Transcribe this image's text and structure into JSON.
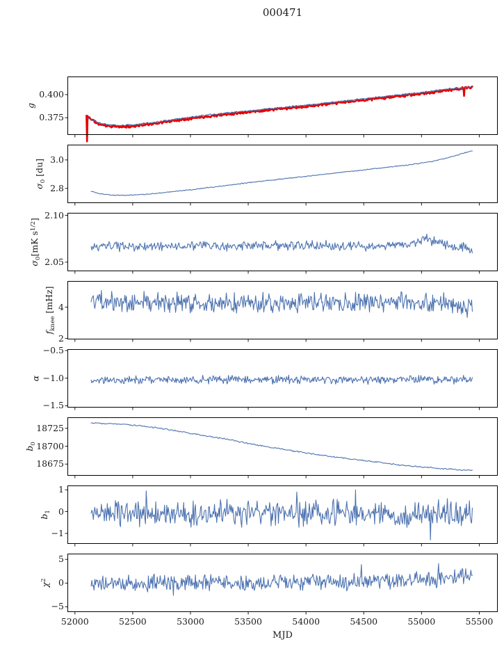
{
  "title": "000471",
  "chart_data": {
    "type": "line",
    "title": "000471",
    "xlabel": "MJD",
    "xlim": [
      51935,
      55660
    ],
    "xticks": [
      52000,
      52500,
      53000,
      53500,
      54000,
      54500,
      55000,
      55500
    ],
    "grid": false,
    "legend": "none",
    "colors": {
      "line_blue": "#4c72b0",
      "line_red": "#e50000",
      "axis": "#000000"
    },
    "panels": [
      {
        "id": "g",
        "ylabel": [
          {
            "t": "g",
            "it": true
          }
        ],
        "ylim": [
          0.3565,
          0.4195
        ],
        "yticks": [
          {
            "v": 0.4,
            "label": "0.400"
          },
          {
            "v": 0.375,
            "label": "0.375"
          }
        ],
        "series": [
          {
            "name": "g-raw-red",
            "color": "#e50000",
            "width": 2.6,
            "n": 700,
            "seed": 11,
            "noise": 0.0009,
            "trend": [
              [
                52100,
                0.3772
              ],
              [
                52200,
                0.3684
              ],
              [
                52300,
                0.3659
              ],
              [
                52400,
                0.3653
              ],
              [
                52500,
                0.366
              ],
              [
                52650,
                0.3682
              ],
              [
                52800,
                0.3709
              ],
              [
                52950,
                0.3735
              ],
              [
                53100,
                0.3759
              ],
              [
                53250,
                0.378
              ],
              [
                53400,
                0.38
              ],
              [
                53550,
                0.3819
              ],
              [
                53700,
                0.3837
              ],
              [
                53850,
                0.3855
              ],
              [
                54000,
                0.3873
              ],
              [
                54150,
                0.3893
              ],
              [
                54300,
                0.3913
              ],
              [
                54450,
                0.3935
              ],
              [
                54600,
                0.3956
              ],
              [
                54750,
                0.3977
              ],
              [
                54900,
                0.3996
              ],
              [
                55050,
                0.4016
              ],
              [
                55150,
                0.4035
              ],
              [
                55250,
                0.4052
              ],
              [
                55350,
                0.4066
              ],
              [
                55440,
                0.4082
              ]
            ],
            "spikes": [
              [
                52104,
                0.3495
              ],
              [
                55370,
                0.3985
              ]
            ]
          },
          {
            "name": "g-smooth-blue",
            "color": "#4c72b0",
            "width": 1.2,
            "n": 420,
            "seed": 3,
            "noise": 0.0005,
            "trend": [
              [
                52110,
                0.3748
              ],
              [
                52200,
                0.3697
              ],
              [
                52300,
                0.3672
              ],
              [
                52400,
                0.3666
              ],
              [
                52500,
                0.3673
              ],
              [
                52650,
                0.3695
              ],
              [
                52800,
                0.3722
              ],
              [
                52950,
                0.3748
              ],
              [
                53100,
                0.3772
              ],
              [
                53250,
                0.3793
              ],
              [
                53400,
                0.3813
              ],
              [
                53550,
                0.3832
              ],
              [
                53700,
                0.385
              ],
              [
                53850,
                0.3868
              ],
              [
                54000,
                0.3886
              ],
              [
                54150,
                0.3906
              ],
              [
                54300,
                0.3926
              ],
              [
                54450,
                0.3948
              ],
              [
                54600,
                0.3969
              ],
              [
                54750,
                0.399
              ],
              [
                54900,
                0.4008
              ],
              [
                55050,
                0.4028
              ],
              [
                55150,
                0.4047
              ],
              [
                55250,
                0.4063
              ],
              [
                55350,
                0.4075
              ],
              [
                55440,
                0.4088
              ]
            ]
          }
        ]
      },
      {
        "id": "sigma0-du",
        "ylabel": [
          {
            "t": "σ",
            "it": true
          },
          {
            "t": "0",
            "sub": true
          },
          {
            "t": " [du]"
          }
        ],
        "ylim": [
          2.697,
          3.107
        ],
        "yticks": [
          {
            "v": 3.0,
            "label": "3.0"
          },
          {
            "v": 2.8,
            "label": "2.8"
          }
        ],
        "series": [
          {
            "name": "sigma0-du-values",
            "color": "#4c72b0",
            "width": 1.1,
            "n": 450,
            "seed": 21,
            "noise": 0.0022,
            "trend": [
              [
                52140,
                2.78
              ],
              [
                52220,
                2.762
              ],
              [
                52320,
                2.753
              ],
              [
                52450,
                2.752
              ],
              [
                52600,
                2.758
              ],
              [
                52750,
                2.768
              ],
              [
                52900,
                2.782
              ],
              [
                53100,
                2.8
              ],
              [
                53300,
                2.82
              ],
              [
                53500,
                2.84
              ],
              [
                53700,
                2.858
              ],
              [
                53900,
                2.876
              ],
              [
                54100,
                2.894
              ],
              [
                54300,
                2.912
              ],
              [
                54500,
                2.93
              ],
              [
                54700,
                2.948
              ],
              [
                54900,
                2.966
              ],
              [
                55100,
                2.99
              ],
              [
                55250,
                3.02
              ],
              [
                55440,
                3.065
              ]
            ]
          }
        ]
      },
      {
        "id": "sigma0-mks",
        "ylabel": [
          {
            "t": "σ",
            "it": true
          },
          {
            "t": "0",
            "sub": true
          },
          {
            "t": "[mK s"
          },
          {
            "t": "1/2",
            "sup": true
          },
          {
            "t": "]"
          }
        ],
        "ylim": [
          2.0403,
          2.1027
        ],
        "yticks": [
          {
            "v": 2.1,
            "label": "2.10"
          },
          {
            "v": 2.05,
            "label": "2.05"
          }
        ],
        "series": [
          {
            "name": "sigma0-mks-values",
            "color": "#4c72b0",
            "width": 1.1,
            "n": 470,
            "seed": 33,
            "noise": 0.0033,
            "trend": [
              [
                52140,
                2.065
              ],
              [
                52300,
                2.0672
              ],
              [
                52500,
                2.066
              ],
              [
                52700,
                2.0675
              ],
              [
                52900,
                2.0668
              ],
              [
                53100,
                2.0678
              ],
              [
                53300,
                2.067
              ],
              [
                53500,
                2.0665
              ],
              [
                53700,
                2.0678
              ],
              [
                53900,
                2.0672
              ],
              [
                54100,
                2.068
              ],
              [
                54300,
                2.0672
              ],
              [
                54500,
                2.0668
              ],
              [
                54700,
                2.0672
              ],
              [
                54900,
                2.069
              ],
              [
                55020,
                2.076
              ],
              [
                55120,
                2.072
              ],
              [
                55250,
                2.0672
              ],
              [
                55440,
                2.064
              ]
            ]
          }
        ]
      },
      {
        "id": "fknee",
        "ylabel": [
          {
            "t": "f",
            "it": true
          },
          {
            "t": "knee",
            "sub": true
          },
          {
            "t": " [mHz]"
          }
        ],
        "ylim": [
          1.94,
          5.674
        ],
        "yticks": [
          {
            "v": 4,
            "label": "4"
          },
          {
            "v": 2,
            "label": "2"
          }
        ],
        "series": [
          {
            "name": "fknee-values",
            "color": "#4c72b0",
            "width": 1.1,
            "n": 520,
            "seed": 47,
            "noise": 0.42,
            "trend": [
              [
                52140,
                4.55
              ],
              [
                52300,
                4.4
              ],
              [
                52500,
                4.32
              ],
              [
                52800,
                4.28
              ],
              [
                53200,
                4.3
              ],
              [
                53600,
                4.28
              ],
              [
                54000,
                4.32
              ],
              [
                54400,
                4.3
              ],
              [
                54800,
                4.33
              ],
              [
                55100,
                4.35
              ],
              [
                55300,
                4.15
              ],
              [
                55440,
                3.95
              ]
            ]
          }
        ]
      },
      {
        "id": "alpha",
        "ylabel": [
          {
            "t": "α",
            "it": true
          }
        ],
        "ylim": [
          -1.532,
          -0.475
        ],
        "yticks": [
          {
            "v": -0.5,
            "label": "−0.5"
          },
          {
            "v": -1.0,
            "label": "−1.0"
          },
          {
            "v": -1.5,
            "label": "−1.5"
          }
        ],
        "series": [
          {
            "name": "alpha-values",
            "color": "#4c72b0",
            "width": 1.1,
            "n": 520,
            "seed": 59,
            "noise": 0.048,
            "trend": [
              [
                52140,
                -1.035
              ],
              [
                52600,
                -1.028
              ],
              [
                53000,
                -1.025
              ],
              [
                53500,
                -1.03
              ],
              [
                54000,
                -1.025
              ],
              [
                54500,
                -1.03
              ],
              [
                55000,
                -1.025
              ],
              [
                55440,
                -1.03
              ]
            ]
          }
        ]
      },
      {
        "id": "b0",
        "ylabel": [
          {
            "t": "b",
            "it": true
          },
          {
            "t": "0",
            "sub": true
          }
        ],
        "ylim": [
          18658.7,
          18740.4
        ],
        "yticks": [
          {
            "v": 18725,
            "label": "18725"
          },
          {
            "v": 18700,
            "label": "18700"
          },
          {
            "v": 18675,
            "label": "18675"
          }
        ],
        "series": [
          {
            "name": "b0-values",
            "color": "#4c72b0",
            "width": 1.1,
            "n": 420,
            "seed": 71,
            "noise": 0.65,
            "trend": [
              [
                52140,
                18732.5
              ],
              [
                52400,
                18731
              ],
              [
                52700,
                18726
              ],
              [
                53000,
                18718
              ],
              [
                53300,
                18710
              ],
              [
                53600,
                18701
              ],
              [
                53900,
                18693
              ],
              [
                54200,
                18686
              ],
              [
                54500,
                18680
              ],
              [
                54800,
                18674
              ],
              [
                55000,
                18671
              ],
              [
                55200,
                18668.5
              ],
              [
                55350,
                18666.5
              ],
              [
                55440,
                18667
              ]
            ]
          }
        ]
      },
      {
        "id": "b1",
        "ylabel": [
          {
            "t": "b",
            "it": true
          },
          {
            "t": "1",
            "sub": true
          }
        ],
        "ylim": [
          -1.48,
          1.2
        ],
        "yticks": [
          {
            "v": 1,
            "label": "1"
          },
          {
            "v": 0,
            "label": "0"
          },
          {
            "v": -1,
            "label": "−1"
          }
        ],
        "series": [
          {
            "name": "b1-values",
            "color": "#4c72b0",
            "width": 1.1,
            "n": 520,
            "seed": 83,
            "noise": 0.4,
            "trend": [
              [
                52140,
                -0.05
              ],
              [
                52600,
                -0.1
              ],
              [
                53000,
                -0.12
              ],
              [
                53500,
                -0.1
              ],
              [
                54000,
                -0.1
              ],
              [
                54500,
                -0.05
              ],
              [
                55000,
                -0.1
              ],
              [
                55440,
                -0.05
              ]
            ],
            "spikes": [
              [
                52620,
                0.95
              ],
              [
                53920,
                0.9
              ],
              [
                54430,
                1.0
              ],
              [
                55080,
                -1.3
              ]
            ]
          }
        ]
      },
      {
        "id": "chi2",
        "ylabel": [
          {
            "t": "χ",
            "it": true
          },
          {
            "t": "2",
            "sup": true
          }
        ],
        "ylim": [
          -6.1,
          6.2
        ],
        "yticks": [
          {
            "v": 5,
            "label": "5"
          },
          {
            "v": 0,
            "label": "0"
          },
          {
            "v": -5,
            "label": "−5"
          }
        ],
        "series": [
          {
            "name": "chi2-values",
            "color": "#4c72b0",
            "width": 1.1,
            "n": 520,
            "seed": 97,
            "noise": 1.15,
            "trend": [
              [
                52140,
                -0.2
              ],
              [
                52700,
                -0.1
              ],
              [
                53300,
                0.1
              ],
              [
                53900,
                0.3
              ],
              [
                54400,
                0.4
              ],
              [
                54800,
                0.6
              ],
              [
                55100,
                0.8
              ],
              [
                55300,
                1.2
              ],
              [
                55440,
                1.8
              ]
            ],
            "spikes": [
              [
                52850,
                -2.6
              ],
              [
                54480,
                3.9
              ],
              [
                55150,
                4.1
              ]
            ]
          }
        ]
      }
    ]
  }
}
